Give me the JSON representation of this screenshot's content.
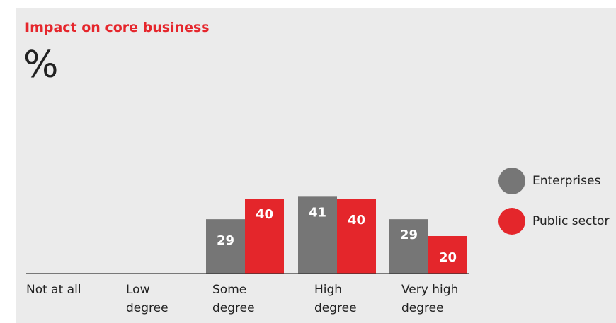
{
  "chart_data": {
    "type": "bar",
    "title": "Impact on core business",
    "unit": "%",
    "categories": [
      [
        "Not at all"
      ],
      [
        "Low",
        "degree"
      ],
      [
        "Some",
        "degree"
      ],
      [
        "High",
        "degree"
      ],
      [
        "Very high",
        "degree"
      ]
    ],
    "series": [
      {
        "name": "Enterprises",
        "color": "#767676",
        "values": [
          null,
          null,
          29,
          41,
          29
        ]
      },
      {
        "name": "Public sector",
        "color": "#e4262b",
        "values": [
          null,
          null,
          40,
          40,
          20
        ]
      }
    ],
    "ylim": [
      0,
      45
    ],
    "grid": false,
    "legend_position": "right"
  }
}
